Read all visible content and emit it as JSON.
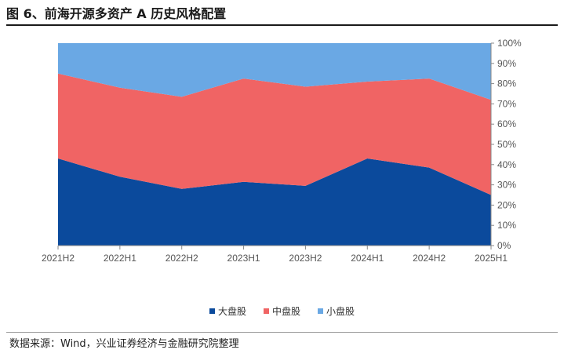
{
  "figure": {
    "title": "图 6、前海开源多资产 A 历史风格配置",
    "source": "数据来源：Wind，兴业证券经济与金融研究院整理"
  },
  "chart_data": {
    "type": "area",
    "stacked": true,
    "categories": [
      "2021H2",
      "2022H1",
      "2022H2",
      "2023H1",
      "2023H2",
      "2024H1",
      "2024H2",
      "2025H1"
    ],
    "series": [
      {
        "name": "大盘股",
        "color": "#0b4a9c",
        "values": [
          43,
          34,
          28,
          31.5,
          29.5,
          43,
          38.5,
          25
        ]
      },
      {
        "name": "中盘股",
        "color": "#f06464",
        "values": [
          42,
          44,
          45.5,
          51,
          49,
          38,
          44,
          47
        ]
      },
      {
        "name": "小盘股",
        "color": "#6aa8e4",
        "values": [
          15,
          22,
          26.5,
          17.5,
          21.5,
          19,
          17.5,
          28
        ]
      }
    ],
    "ylim": [
      0,
      100
    ],
    "yticks": [
      "0%",
      "10%",
      "20%",
      "30%",
      "40%",
      "50%",
      "60%",
      "70%",
      "80%",
      "90%",
      "100%"
    ],
    "y_axis_side": "right",
    "grid": false,
    "legend_position": "bottom-center"
  }
}
